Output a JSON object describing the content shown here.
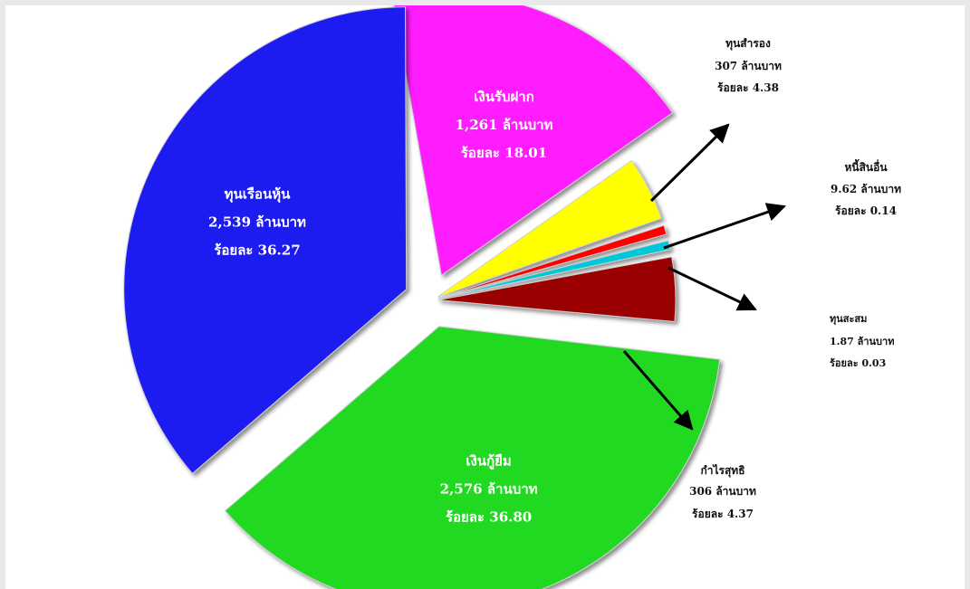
{
  "chart_data": {
    "type": "pie",
    "exploded": true,
    "slices": [
      {
        "label": "เงินรับฝาก",
        "value_text": "1,261 ล้านบาท",
        "percent_text": "ร้อยละ 18.01",
        "value": 1261,
        "percent": 18.01,
        "color": "#ff1eff",
        "label_inside": true
      },
      {
        "label": "ทุนสำรอง",
        "value_text": "307 ล้านบาท",
        "percent_text": "ร้อยละ 4.38",
        "value": 307,
        "percent": 4.38,
        "color": "#ffff00",
        "label_inside": false
      },
      {
        "label": "หนี้สินอื่น",
        "value_text": "9.62 ล้านบาท",
        "percent_text": "ร้อยละ 0.14",
        "value": 9.62,
        "percent": 0.14,
        "color": "#ff0000",
        "label_inside": false
      },
      {
        "label": "ทุนสะสม",
        "value_text": "1.87 ล้านบาท",
        "percent_text": "ร้อยละ 0.03",
        "value": 1.87,
        "percent": 0.03,
        "color": "#00c8d8",
        "label_inside": false
      },
      {
        "label": "กำไรสุทธิ",
        "value_text": "306 ล้านบาท",
        "percent_text": "ร้อยละ 4.37",
        "value": 306,
        "percent": 4.37,
        "color": "#9a0000",
        "label_inside": false
      },
      {
        "label": "เงินกู้ยืม",
        "value_text": "2,576 ล้านบาท",
        "percent_text": "ร้อยละ 36.80",
        "value": 2576,
        "percent": 36.8,
        "color": "#22d922",
        "label_inside": true
      },
      {
        "label": "ทุนเรือนหุ้น",
        "value_text": "2,539 ล้านบาท",
        "percent_text": "ร้อยละ 36.27",
        "value": 2539,
        "percent": 36.27,
        "color": "#1e1ef0",
        "label_inside": true
      }
    ]
  }
}
